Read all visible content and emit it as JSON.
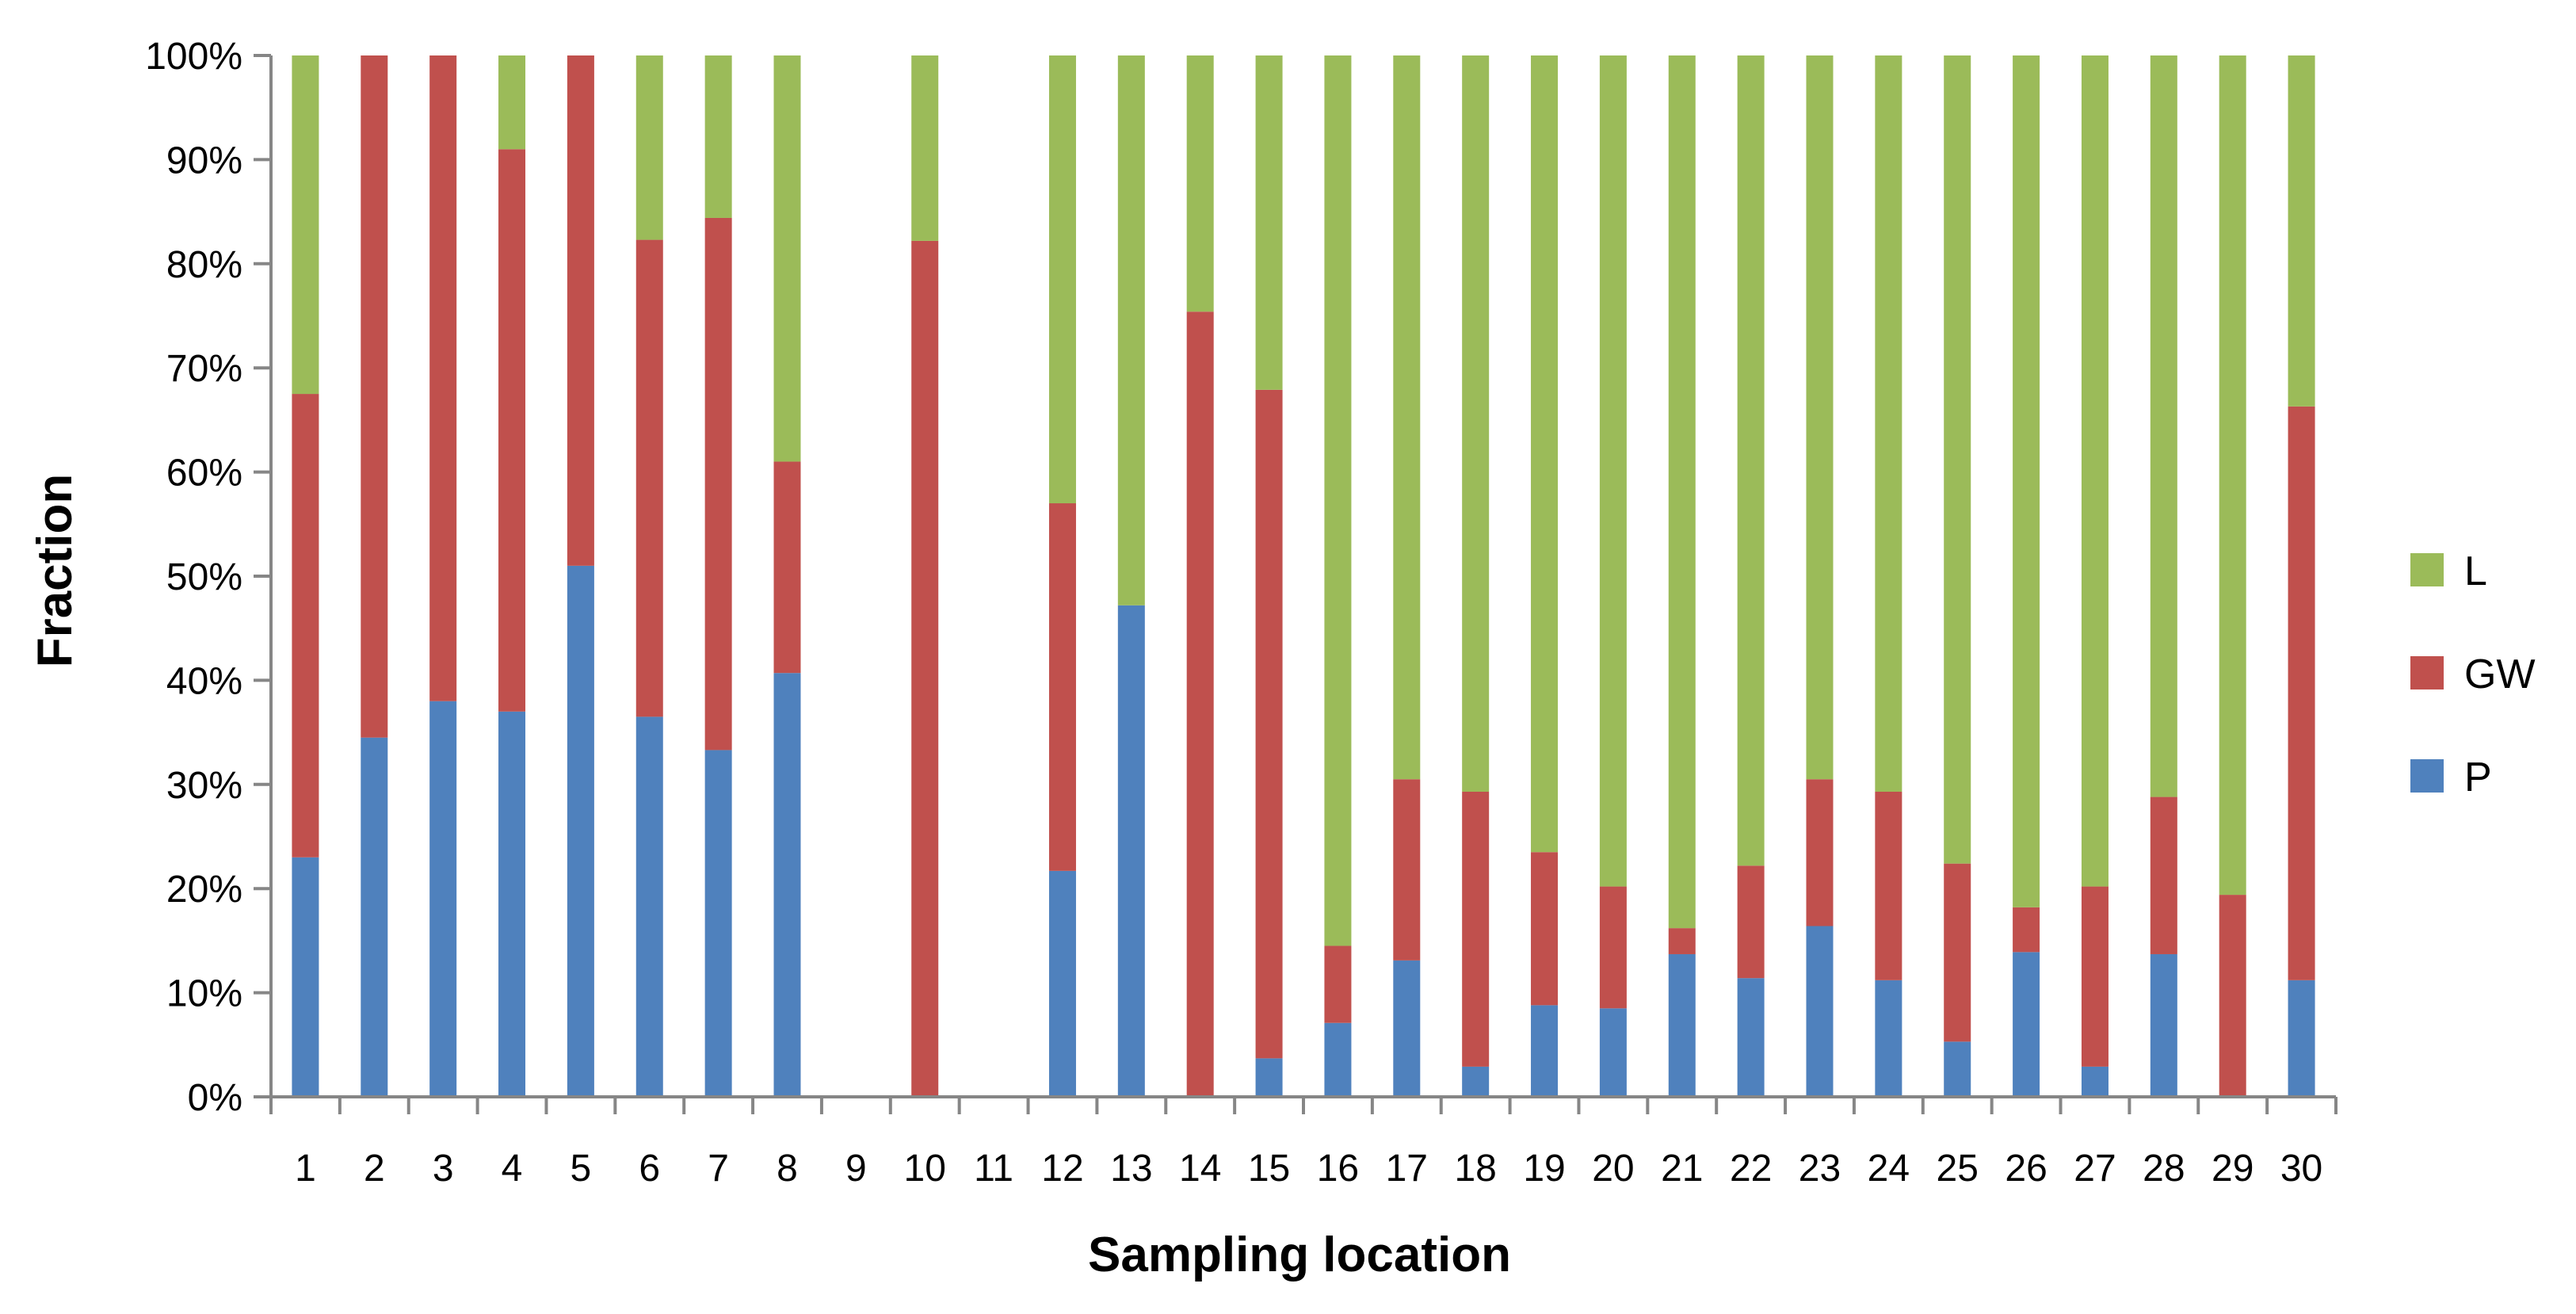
{
  "chart_data": {
    "type": "bar",
    "stacked": true,
    "percent": true,
    "title": "",
    "xlabel": "Sampling location",
    "ylabel": "Fraction",
    "ylim": [
      0,
      100
    ],
    "y_ticks": [
      0,
      10,
      20,
      30,
      40,
      50,
      60,
      70,
      80,
      90,
      100
    ],
    "y_tick_suffix": "%",
    "grid": false,
    "legend_position": "right",
    "categories": [
      "1",
      "2",
      "3",
      "4",
      "5",
      "6",
      "7",
      "8",
      "9",
      "10",
      "11",
      "12",
      "13",
      "14",
      "15",
      "16",
      "17",
      "18",
      "19",
      "20",
      "21",
      "22",
      "23",
      "24",
      "25",
      "26",
      "27",
      "28",
      "29",
      "30"
    ],
    "series": [
      {
        "name": "P",
        "color": "#4F81BD",
        "values": [
          23,
          34.5,
          38,
          37,
          51,
          36.5,
          33.3,
          40.7,
          0,
          0,
          0,
          21.7,
          47.2,
          0,
          3.7,
          7.1,
          13.1,
          2.9,
          8.8,
          8.5,
          13.7,
          11.4,
          16.4,
          11.2,
          5.3,
          13.9,
          2.9,
          13.7,
          0,
          11.2
        ]
      },
      {
        "name": "GW",
        "color": "#C0504D",
        "values": [
          44.5,
          65.5,
          62,
          54,
          49,
          45.8,
          51.1,
          20.3,
          0,
          82.2,
          0,
          35.3,
          0,
          75.4,
          64.2,
          7.4,
          17.4,
          26.4,
          14.7,
          11.7,
          2.5,
          10.8,
          14.1,
          18.1,
          17.1,
          4.3,
          17.3,
          15.1,
          19.4,
          55.1
        ]
      },
      {
        "name": "L",
        "color": "#9BBB59",
        "values": [
          32.5,
          0,
          0,
          9,
          0,
          17.7,
          15.6,
          39,
          0,
          17.8,
          0,
          43,
          52.8,
          24.6,
          32.1,
          85.5,
          69.5,
          70.7,
          76.5,
          79.8,
          83.8,
          77.8,
          69.5,
          70.7,
          77.6,
          81.8,
          79.8,
          71.2,
          80.6,
          33.7
        ]
      }
    ],
    "legend_order": [
      "L",
      "GW",
      "P"
    ]
  }
}
